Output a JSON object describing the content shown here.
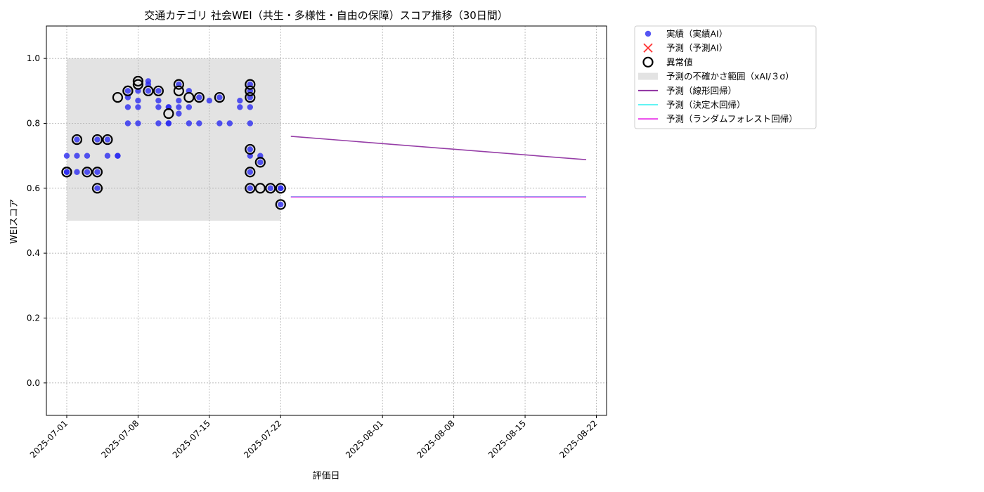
{
  "chart_data": {
    "type": "scatter",
    "title": "交通カテゴリ 社会WEI（共生・多様性・自由の保障）スコア推移（30日間）",
    "xlabel": "評価日",
    "ylabel": "WEIスコア",
    "xlim": [
      "2025-06-29",
      "2025-08-23"
    ],
    "ylim": [
      -0.1,
      1.1
    ],
    "grid": true,
    "legend_position": "outside-top-right",
    "x_ticks": [
      "2025-07-01",
      "2025-07-08",
      "2025-07-15",
      "2025-07-22",
      "2025-08-01",
      "2025-08-08",
      "2025-08-15",
      "2025-08-22"
    ],
    "y_ticks": [
      0.0,
      0.2,
      0.4,
      0.6,
      0.8,
      1.0
    ],
    "uncertainty_band": {
      "name": "予測の不確かさ範囲（xAI/３σ）",
      "x_start": "2025-07-01",
      "x_end": "2025-07-22",
      "y_low": 0.5,
      "y_high": 1.0,
      "color": "#d9d9d9"
    },
    "series": [
      {
        "name": "実績（実績AI）",
        "kind": "scatter",
        "color": "#2a2af0",
        "x": [
          "2025-07-01",
          "2025-07-01",
          "2025-07-01",
          "2025-07-02",
          "2025-07-02",
          "2025-07-02",
          "2025-07-03",
          "2025-07-03",
          "2025-07-04",
          "2025-07-04",
          "2025-07-04",
          "2025-07-05",
          "2025-07-05",
          "2025-07-06",
          "2025-07-06",
          "2025-07-07",
          "2025-07-07",
          "2025-07-07",
          "2025-07-07",
          "2025-07-08",
          "2025-07-08",
          "2025-07-08",
          "2025-07-08",
          "2025-07-09",
          "2025-07-09",
          "2025-07-09",
          "2025-07-10",
          "2025-07-10",
          "2025-07-10",
          "2025-07-10",
          "2025-07-11",
          "2025-07-11",
          "2025-07-11",
          "2025-07-11",
          "2025-07-12",
          "2025-07-12",
          "2025-07-12",
          "2025-07-12",
          "2025-07-13",
          "2025-07-13",
          "2025-07-13",
          "2025-07-14",
          "2025-07-14",
          "2025-07-15",
          "2025-07-16",
          "2025-07-16",
          "2025-07-17",
          "2025-07-18",
          "2025-07-18",
          "2025-07-19",
          "2025-07-19",
          "2025-07-19",
          "2025-07-19",
          "2025-07-19",
          "2025-07-19",
          "2025-07-19",
          "2025-07-19",
          "2025-07-19",
          "2025-07-20",
          "2025-07-20",
          "2025-07-21",
          "2025-07-22",
          "2025-07-22",
          "2025-07-22"
        ],
        "y": [
          0.65,
          0.7,
          0.65,
          0.75,
          0.7,
          0.65,
          0.7,
          0.65,
          0.75,
          0.65,
          0.6,
          0.75,
          0.7,
          0.7,
          0.7,
          0.88,
          0.85,
          0.8,
          0.9,
          0.9,
          0.87,
          0.85,
          0.8,
          0.93,
          0.92,
          0.9,
          0.87,
          0.85,
          0.8,
          0.9,
          0.85,
          0.8,
          0.85,
          0.8,
          0.83,
          0.87,
          0.85,
          0.92,
          0.85,
          0.8,
          0.9,
          0.88,
          0.8,
          0.87,
          0.88,
          0.8,
          0.8,
          0.85,
          0.87,
          0.8,
          0.88,
          0.85,
          0.92,
          0.9,
          0.72,
          0.7,
          0.65,
          0.6,
          0.68,
          0.7,
          0.6,
          0.6,
          0.6,
          0.55
        ]
      },
      {
        "name": "予測（予測AI）",
        "kind": "scatter-x",
        "color": "#ff3333",
        "x": [],
        "y": []
      },
      {
        "name": "異常値",
        "kind": "outlier",
        "color": "#000000",
        "x": [
          "2025-07-01",
          "2025-07-01",
          "2025-07-02",
          "2025-07-03",
          "2025-07-04",
          "2025-07-04",
          "2025-07-04",
          "2025-07-05",
          "2025-07-06",
          "2025-07-07",
          "2025-07-07",
          "2025-07-08",
          "2025-07-08",
          "2025-07-09",
          "2025-07-10",
          "2025-07-11",
          "2025-07-12",
          "2025-07-12",
          "2025-07-13",
          "2025-07-14",
          "2025-07-16",
          "2025-07-19",
          "2025-07-19",
          "2025-07-19",
          "2025-07-19",
          "2025-07-19",
          "2025-07-19",
          "2025-07-20",
          "2025-07-20",
          "2025-07-21",
          "2025-07-22",
          "2025-07-22"
        ],
        "y": [
          0.65,
          0.65,
          0.75,
          0.65,
          0.75,
          0.65,
          0.6,
          0.75,
          0.88,
          0.9,
          0.9,
          0.93,
          0.92,
          0.9,
          0.9,
          0.83,
          0.92,
          0.9,
          0.88,
          0.88,
          0.88,
          0.92,
          0.9,
          0.72,
          0.65,
          0.6,
          0.88,
          0.6,
          0.68,
          0.6,
          0.6,
          0.55
        ]
      },
      {
        "name": "予測（線形回帰）",
        "kind": "line",
        "color": "#8b2a9e",
        "x": [
          "2025-07-23",
          "2025-08-21"
        ],
        "y": [
          0.76,
          0.688
        ]
      },
      {
        "name": "予測（決定木回帰）",
        "kind": "line",
        "color": "#4cf2f2",
        "x": [
          "2025-07-23",
          "2025-08-21"
        ],
        "y": [
          0.574,
          0.574
        ]
      },
      {
        "name": "予測（ランダムフォレスト回帰）",
        "kind": "line",
        "color": "#e832e8",
        "x": [
          "2025-07-23",
          "2025-08-21"
        ],
        "y": [
          0.573,
          0.573
        ]
      }
    ]
  }
}
